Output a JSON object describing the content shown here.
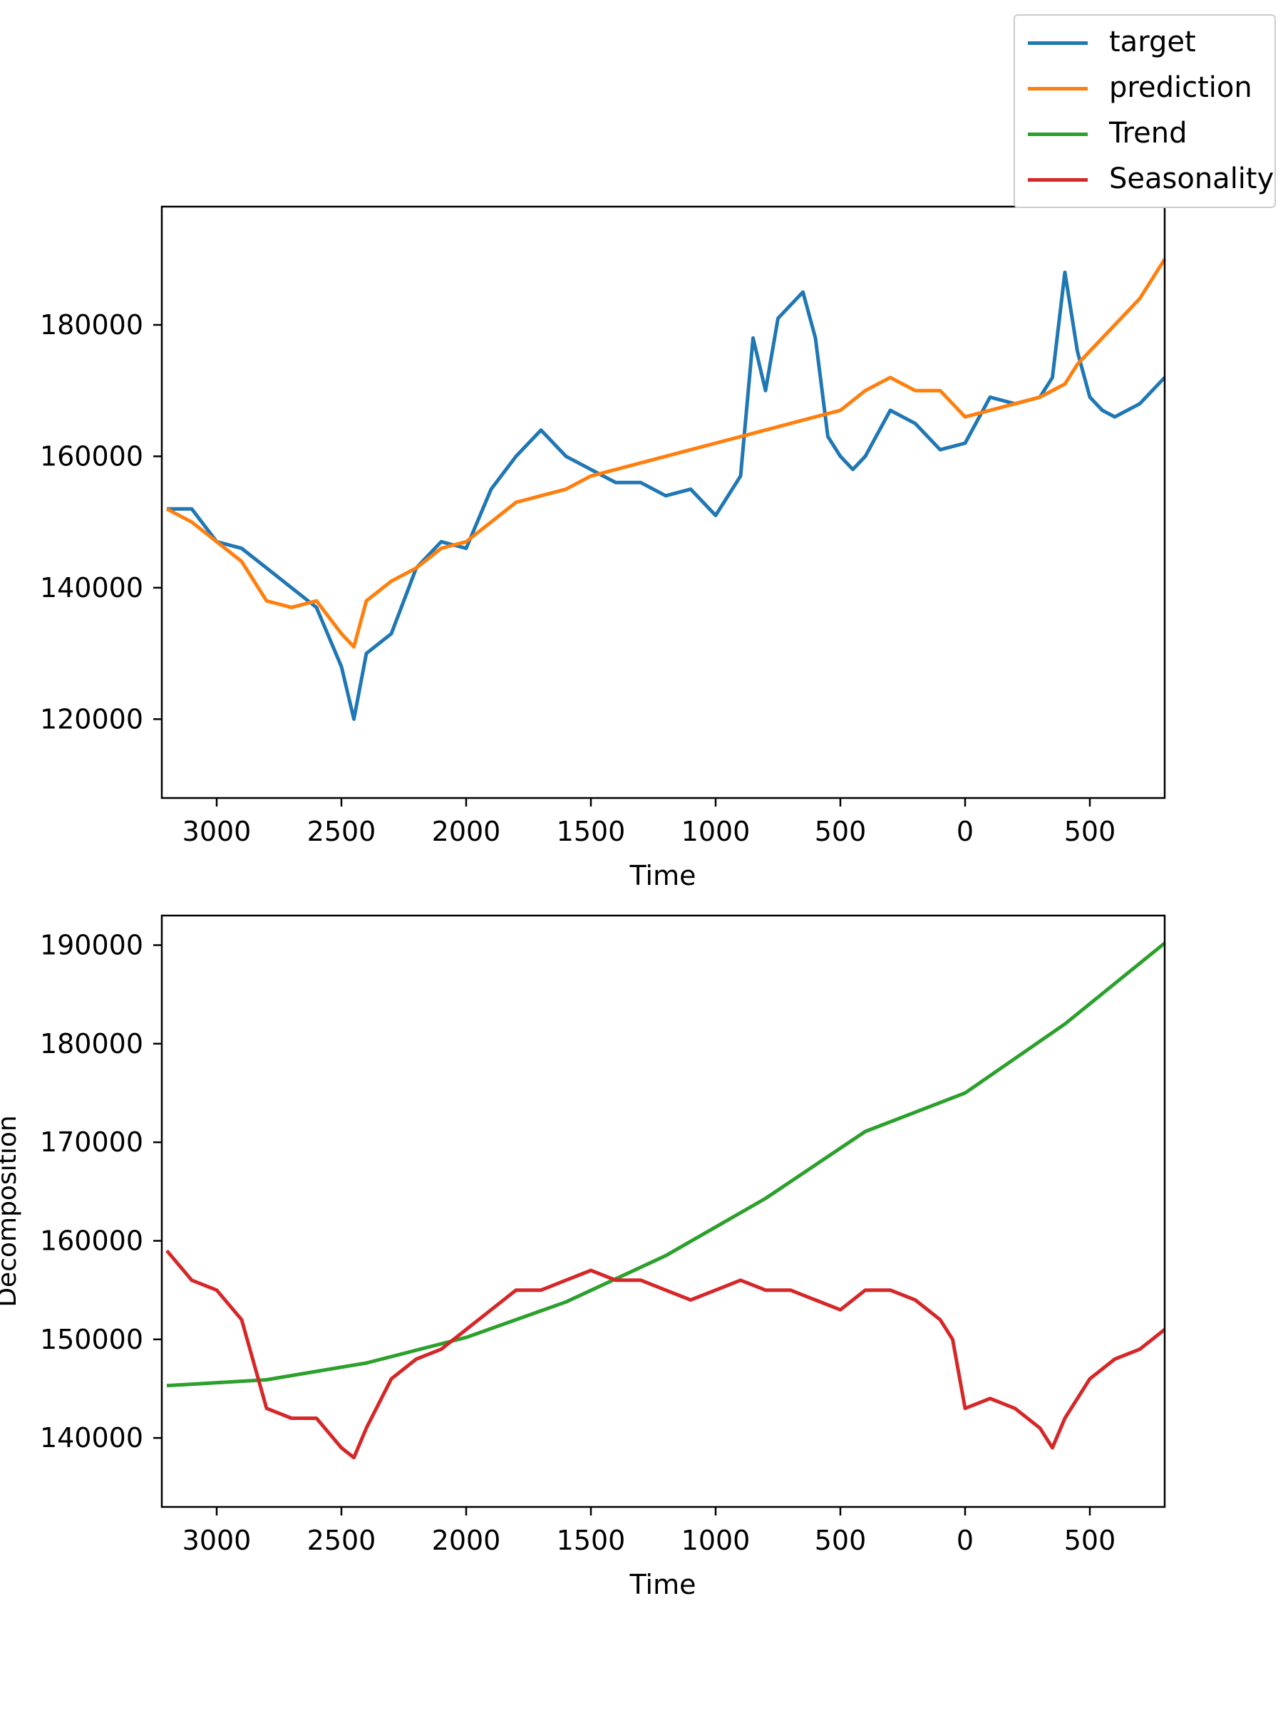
{
  "chart_data": [
    {
      "type": "line",
      "title": "",
      "xlabel": "Time",
      "ylabel": "",
      "x_ticks": [
        "3000",
        "2500",
        "2000",
        "1500",
        "1000",
        "500",
        "0",
        "500"
      ],
      "y_ticks": [
        "120000",
        "140000",
        "160000",
        "180000"
      ],
      "xlim": [
        -3220,
        800
      ],
      "ylim": [
        108000,
        198000
      ],
      "grid": false,
      "series": [
        {
          "name": "target",
          "color": "#1f77b4",
          "x": [
            -3200,
            -3100,
            -3000,
            -2900,
            -2800,
            -2700,
            -2600,
            -2500,
            -2450,
            -2400,
            -2300,
            -2200,
            -2100,
            -2000,
            -1900,
            -1800,
            -1700,
            -1600,
            -1500,
            -1400,
            -1300,
            -1200,
            -1100,
            -1000,
            -900,
            -850,
            -800,
            -750,
            -700,
            -650,
            -600,
            -550,
            -500,
            -450,
            -400,
            -300,
            -200,
            -100,
            0,
            100,
            200,
            300,
            350,
            400,
            450,
            500,
            550,
            600,
            700,
            800
          ],
          "y": [
            152000,
            152000,
            147000,
            146000,
            143000,
            140000,
            137000,
            128000,
            120000,
            130000,
            133000,
            143000,
            147000,
            146000,
            155000,
            160000,
            164000,
            160000,
            158000,
            156000,
            156000,
            154000,
            155000,
            151000,
            157000,
            178000,
            170000,
            181000,
            183000,
            185000,
            178000,
            163000,
            160000,
            158000,
            160000,
            167000,
            165000,
            161000,
            162000,
            169000,
            168000,
            169000,
            172000,
            188000,
            176000,
            169000,
            167000,
            166000,
            168000,
            172000
          ]
        },
        {
          "name": "prediction",
          "color": "#ff7f0e",
          "x": [
            -3200,
            -3100,
            -3000,
            -2900,
            -2800,
            -2700,
            -2600,
            -2500,
            -2450,
            -2400,
            -2300,
            -2200,
            -2100,
            -2000,
            -1900,
            -1800,
            -1700,
            -1600,
            -1500,
            -1400,
            -1300,
            -1200,
            -1100,
            -1000,
            -900,
            -800,
            -700,
            -600,
            -500,
            -400,
            -300,
            -200,
            -100,
            0,
            100,
            200,
            300,
            400,
            450,
            500,
            600,
            700,
            800
          ],
          "y": [
            152000,
            150000,
            147000,
            144000,
            138000,
            137000,
            138000,
            133000,
            131000,
            138000,
            141000,
            143000,
            146000,
            147000,
            150000,
            153000,
            154000,
            155000,
            157000,
            158000,
            159000,
            160000,
            161000,
            162000,
            163000,
            164000,
            165000,
            166000,
            167000,
            170000,
            172000,
            170000,
            170000,
            166000,
            167000,
            168000,
            169000,
            171000,
            174000,
            176000,
            180000,
            184000,
            190000
          ]
        }
      ]
    },
    {
      "type": "line",
      "title": "",
      "xlabel": "Time",
      "ylabel": "Decomposition",
      "x_ticks": [
        "3000",
        "2500",
        "2000",
        "1500",
        "1000",
        "500",
        "0",
        "500"
      ],
      "y_ticks": [
        "140000",
        "150000",
        "160000",
        "170000",
        "180000",
        "190000"
      ],
      "xlim": [
        -3220,
        800
      ],
      "ylim": [
        133000,
        193000
      ],
      "grid": false,
      "series": [
        {
          "name": "Trend",
          "color": "#2ca02c",
          "x": [
            -3200,
            -2800,
            -2400,
            -2000,
            -1600,
            -1200,
            -800,
            -400,
            0,
            400,
            800
          ],
          "y": [
            145300,
            145900,
            147600,
            150200,
            153800,
            158500,
            164300,
            171100,
            175000,
            182000,
            190200
          ]
        },
        {
          "name": "Seasonality",
          "color": "#d62728",
          "x": [
            -3200,
            -3100,
            -3000,
            -2900,
            -2800,
            -2700,
            -2600,
            -2500,
            -2450,
            -2400,
            -2300,
            -2200,
            -2100,
            -2000,
            -1900,
            -1800,
            -1700,
            -1600,
            -1500,
            -1400,
            -1300,
            -1200,
            -1100,
            -1000,
            -900,
            -800,
            -700,
            -600,
            -500,
            -400,
            -300,
            -200,
            -100,
            -50,
            0,
            100,
            200,
            300,
            350,
            400,
            500,
            600,
            700,
            800
          ],
          "y": [
            159000,
            156000,
            155000,
            152000,
            143000,
            142000,
            142000,
            139000,
            138000,
            141000,
            146000,
            148000,
            149000,
            151000,
            153000,
            155000,
            155000,
            156000,
            157000,
            156000,
            156000,
            155000,
            154000,
            155000,
            156000,
            155000,
            155000,
            154000,
            153000,
            155000,
            155000,
            154000,
            152000,
            150000,
            143000,
            144000,
            143000,
            141000,
            139000,
            142000,
            146000,
            148000,
            149000,
            151000
          ]
        }
      ]
    }
  ],
  "legend": {
    "items": [
      {
        "label": "target",
        "color": "#1f77b4"
      },
      {
        "label": "prediction",
        "color": "#ff7f0e"
      },
      {
        "label": "Trend",
        "color": "#2ca02c"
      },
      {
        "label": "Seasonality",
        "color": "#d62728"
      }
    ]
  }
}
